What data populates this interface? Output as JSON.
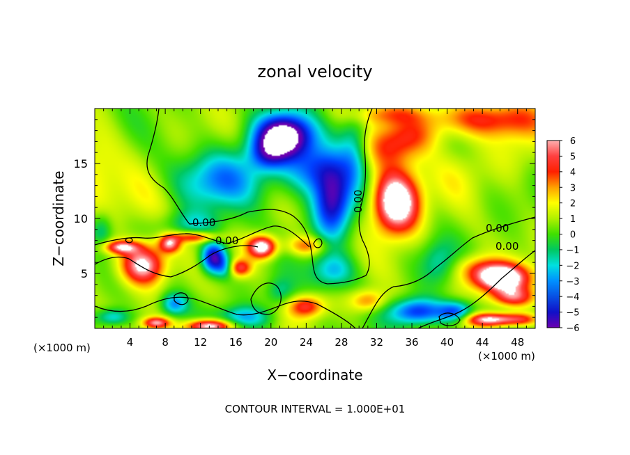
{
  "chart_data": {
    "type": "heatmap",
    "title": "zonal velocity",
    "xlabel": "X−coordinate",
    "ylabel": "Z−coordinate",
    "x_unit_note": "(×1000 m)",
    "x_unit_note_right": "(×1000 m)",
    "xlim": [
      0,
      50
    ],
    "ylim": [
      0,
      20
    ],
    "x_ticks": [
      "4",
      "8",
      "12",
      "16",
      "20",
      "24",
      "28",
      "32",
      "36",
      "40",
      "44",
      "48"
    ],
    "y_ticks": [
      "5",
      "10",
      "15"
    ],
    "colorbar": {
      "ticks": [
        "6",
        "5",
        "4",
        "3",
        "2",
        "1",
        "0",
        "−1",
        "−2",
        "−3",
        "−4",
        "−5",
        "−6"
      ],
      "range": [
        -6,
        6
      ]
    },
    "contour_labels": [
      "0.00",
      "0.00",
      "0.00",
      "0.00",
      "0.00"
    ],
    "contour_interval_text": "CONTOUR INTERVAL = 1.000E+01",
    "field_features": [
      {
        "kind": "max",
        "x": 34,
        "z": 11.5,
        "value": 6.5
      },
      {
        "kind": "max",
        "x": 46,
        "z": 4.5,
        "value": 6.5
      },
      {
        "kind": "max",
        "x": 19,
        "z": 7.3,
        "value": 6.5
      },
      {
        "kind": "max",
        "x": 5.5,
        "z": 5.8,
        "value": 5.5
      },
      {
        "kind": "max",
        "x": 8.5,
        "z": 7.7,
        "value": 5.5
      },
      {
        "kind": "min",
        "x": 21.5,
        "z": 17.7,
        "value": -7.5
      },
      {
        "kind": "min",
        "x": 27,
        "z": 11.5,
        "value": -5.5
      },
      {
        "kind": "min",
        "x": 13.5,
        "z": 6.5,
        "value": -5.5
      },
      {
        "kind": "min",
        "x": 36.5,
        "z": 1.5,
        "value": -5.0
      }
    ]
  }
}
